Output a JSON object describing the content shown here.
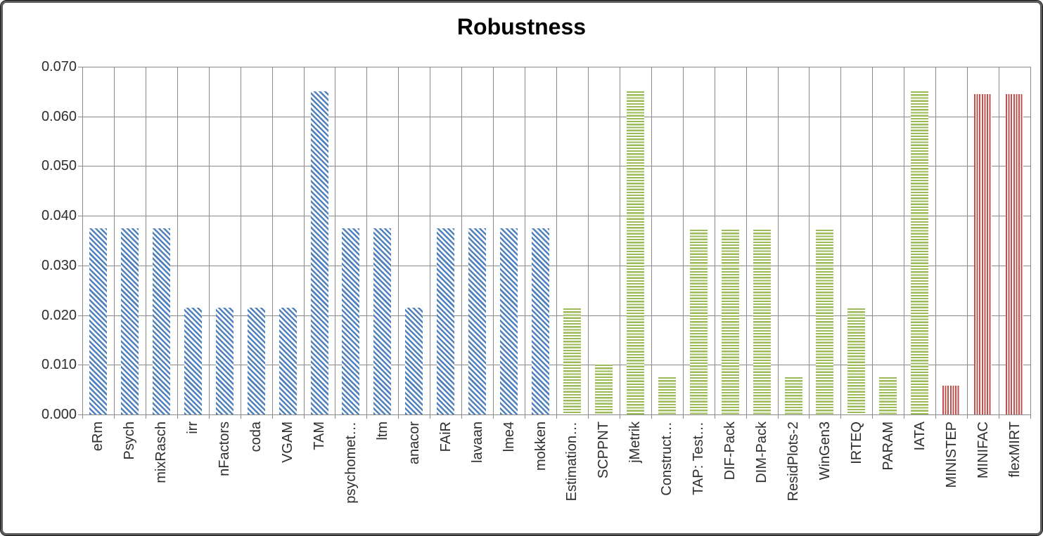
{
  "chart_data": {
    "type": "bar",
    "title": "Robustness",
    "xlabel": "",
    "ylabel": "",
    "ylim": [
      0,
      0.07
    ],
    "ytick_step": 0.01,
    "ytick_decimals": 3,
    "grid": "both",
    "legend": "none",
    "categories": [
      "eRm",
      "Psych",
      "mixRasch",
      "irr",
      "nFactors",
      "coda",
      "VGAM",
      "TAM",
      "psychomet…",
      "ltm",
      "anacor",
      "FAiR",
      "lavaan",
      "lme4",
      "mokken",
      "Estimation…",
      "SCPPNT",
      "jMetrik",
      "Construct…",
      "TAP: Test…",
      "DIF-Pack",
      "DIM-Pack",
      "ResidPlots-2",
      "WinGen3",
      "IRTEQ",
      "PARAM",
      "IATA",
      "MINISTEP",
      "MINIFAC",
      "flexMIRT"
    ],
    "values": [
      0.0375,
      0.0375,
      0.0375,
      0.0215,
      0.0215,
      0.0215,
      0.0215,
      0.065,
      0.0375,
      0.0375,
      0.0215,
      0.0375,
      0.0375,
      0.0375,
      0.0375,
      0.0213,
      0.01,
      0.065,
      0.0075,
      0.0372,
      0.0372,
      0.0372,
      0.0075,
      0.0372,
      0.0213,
      0.0075,
      0.065,
      0.0058,
      0.0645,
      0.0645
    ],
    "bar_style_index": [
      0,
      0,
      0,
      0,
      0,
      0,
      0,
      0,
      0,
      0,
      0,
      0,
      0,
      0,
      0,
      1,
      1,
      1,
      1,
      1,
      1,
      1,
      1,
      1,
      1,
      1,
      1,
      2,
      2,
      2
    ],
    "styles": [
      {
        "name": "blue-diagonal-hatch",
        "color": "#4f81bd",
        "pattern": "diagonal-down"
      },
      {
        "name": "green-horizontal-stripes",
        "color": "#9bbb59",
        "pattern": "horizontal"
      },
      {
        "name": "red-vertical-stripes",
        "color": "#c0504d",
        "pattern": "vertical"
      }
    ]
  },
  "colors": {
    "gridline": "#8a8a8a",
    "axis": "#8a8a8a",
    "tick_text": "#2e2e2e",
    "title_text": "#000000",
    "frame_border": "#595959",
    "background": "#ffffff"
  }
}
